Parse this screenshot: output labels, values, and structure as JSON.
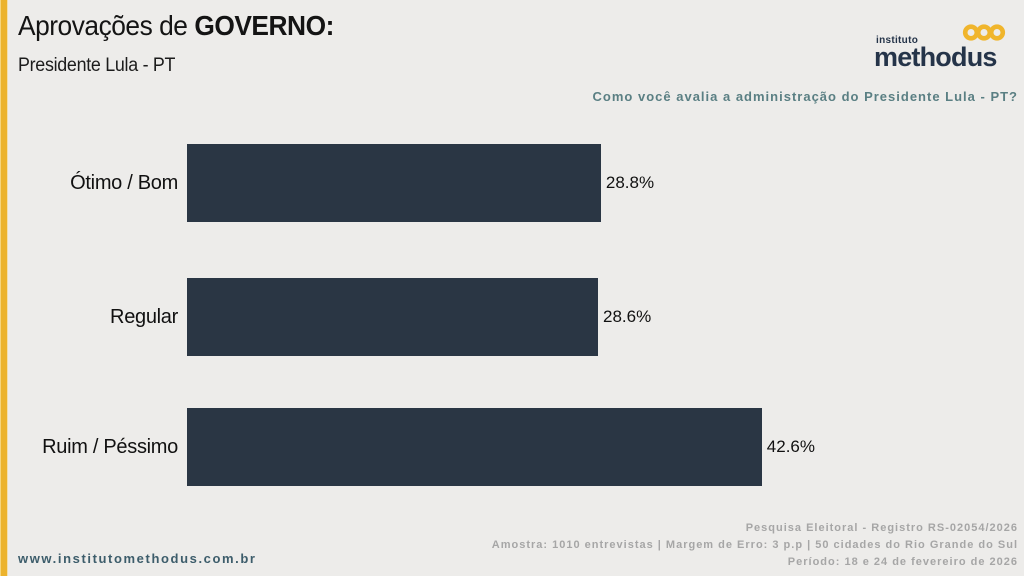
{
  "header": {
    "title_regular": "Aprovações de ",
    "title_bold": "GOVERNO:",
    "subtitle": "Presidente Lula - PT"
  },
  "logo": {
    "top_word": "instituto",
    "name": "methodus",
    "icon": "three-rings-icon",
    "navy": "#253449",
    "yellow": "#f0b52c"
  },
  "question": "Como você avalia a administração do Presidente Lula - PT?",
  "chart_data": {
    "type": "bar",
    "orientation": "horizontal",
    "title": "Aprovações de GOVERNO: Presidente Lula - PT",
    "categories": [
      "Ótimo / Bom",
      "Regular",
      "Ruim / Péssimo"
    ],
    "values": [
      28.8,
      28.6,
      42.6
    ],
    "value_labels": [
      "28.8%",
      "28.6%",
      "42.6%"
    ],
    "xlim": [
      0,
      43.7
    ],
    "bar_color": "#2a3644",
    "grid": false,
    "legend": false
  },
  "footer": {
    "website": "www.institutomethodus.com.br",
    "registry_line": "Pesquisa Eleitoral - Registro RS-02054/2026",
    "sample_line": "Amostra: 1010 entrevistas | Margem de Erro: 3 p.p | 50 cidades do Rio Grande do Sul",
    "period_line": "Período: 18 e 24 de fevereiro de 2026"
  },
  "colors": {
    "background": "#edecea",
    "accent_stripe": "#ecb32d",
    "question_text": "#5a7f83",
    "footer_gray": "#a6a6a6",
    "website_text": "#3d5d6b"
  }
}
